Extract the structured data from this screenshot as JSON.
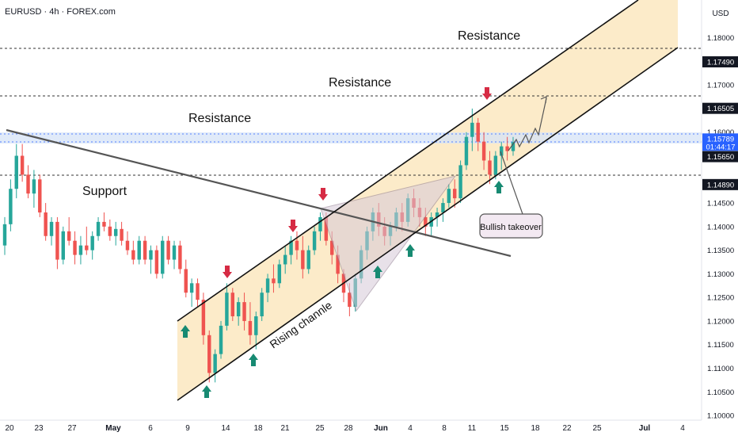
{
  "header": {
    "symbol_line": "EURUSD · 4h · FOREX.com",
    "currency": "USD"
  },
  "chart_data": {
    "type": "candlestick",
    "symbol": "EURUSD",
    "timeframe": "4h",
    "exchange": "FOREX.com",
    "currency": "USD",
    "ylim": [
      1.099,
      1.188
    ],
    "y_ticks": [
      {
        "value": 1.18,
        "label": "1.18000"
      },
      {
        "value": 1.17,
        "label": "1.17000"
      },
      {
        "value": 1.16,
        "label": "1.16000"
      },
      {
        "value": 1.155,
        "label": "1.15500"
      },
      {
        "value": 1.145,
        "label": "1.14500"
      },
      {
        "value": 1.14,
        "label": "1.14000"
      },
      {
        "value": 1.135,
        "label": "1.13500"
      },
      {
        "value": 1.13,
        "label": "1.13000"
      },
      {
        "value": 1.125,
        "label": "1.12500"
      },
      {
        "value": 1.12,
        "label": "1.12000"
      },
      {
        "value": 1.115,
        "label": "1.11500"
      },
      {
        "value": 1.11,
        "label": "1.11000"
      },
      {
        "value": 1.105,
        "label": "1.10500"
      },
      {
        "value": 1.1,
        "label": "1.10000"
      }
    ],
    "x_ticks": [
      {
        "label": "20",
        "bold": false
      },
      {
        "label": "23",
        "bold": false
      },
      {
        "label": "27",
        "bold": false
      },
      {
        "label": "May",
        "bold": true
      },
      {
        "label": "6",
        "bold": false
      },
      {
        "label": "9",
        "bold": false
      },
      {
        "label": "14",
        "bold": false
      },
      {
        "label": "18",
        "bold": false
      },
      {
        "label": "21",
        "bold": false
      },
      {
        "label": "25",
        "bold": false
      },
      {
        "label": "28",
        "bold": false
      },
      {
        "label": "Jun",
        "bold": true
      },
      {
        "label": "4",
        "bold": false
      },
      {
        "label": "8",
        "bold": false
      },
      {
        "label": "11",
        "bold": false
      },
      {
        "label": "15",
        "bold": false
      },
      {
        "label": "18",
        "bold": false
      },
      {
        "label": "22",
        "bold": false
      },
      {
        "label": "25",
        "bold": false
      },
      {
        "label": "Jul",
        "bold": true
      },
      {
        "label": "4",
        "bold": false
      }
    ],
    "price_markers": [
      {
        "value": 1.1749,
        "label": "1.17490",
        "style": "dark"
      },
      {
        "value": 1.16505,
        "label": "1.16505",
        "style": "dark"
      },
      {
        "value": 1.15789,
        "label": "1.15789",
        "style": "blue"
      },
      {
        "value": 1.1565,
        "label": "1.15650",
        "style": "dark"
      },
      {
        "value": 1.1489,
        "label": "1.14890",
        "style": "dark"
      }
    ],
    "countdown": "01:44:17",
    "current_price": 1.15789,
    "horizontal_levels": [
      1.1749,
      1.16505,
      1.1489
    ],
    "support_band": [
      1.1565,
      1.15789
    ],
    "annotations": {
      "resistance_1": "Resistance",
      "resistance_2": "Resistance",
      "resistance_3": "Resistance",
      "support": "Support",
      "channel": "Rising channle",
      "callout": "Bullish takeover"
    },
    "candles_approx": [
      [
        1.136,
        1.142,
        1.134,
        1.1405
      ],
      [
        1.1405,
        1.15,
        1.139,
        1.148
      ],
      [
        1.148,
        1.1575,
        1.146,
        1.155
      ],
      [
        1.155,
        1.1575,
        1.1495,
        1.151
      ],
      [
        1.151,
        1.153,
        1.146,
        1.147
      ],
      [
        1.147,
        1.152,
        1.144,
        1.15
      ],
      [
        1.15,
        1.151,
        1.142,
        1.143
      ],
      [
        1.143,
        1.145,
        1.137,
        1.138
      ],
      [
        1.138,
        1.142,
        1.136,
        1.141
      ],
      [
        1.141,
        1.142,
        1.131,
        1.133
      ],
      [
        1.133,
        1.14,
        1.132,
        1.139
      ],
      [
        1.139,
        1.142,
        1.136,
        1.137
      ],
      [
        1.137,
        1.139,
        1.132,
        1.134
      ],
      [
        1.134,
        1.138,
        1.132,
        1.136
      ],
      [
        1.136,
        1.14,
        1.134,
        1.135
      ],
      [
        1.135,
        1.139,
        1.133,
        1.138
      ],
      [
        1.138,
        1.142,
        1.137,
        1.141
      ],
      [
        1.141,
        1.143,
        1.139,
        1.14
      ],
      [
        1.14,
        1.1415,
        1.137,
        1.138
      ],
      [
        1.138,
        1.141,
        1.136,
        1.1395
      ],
      [
        1.1395,
        1.141,
        1.136,
        1.137
      ],
      [
        1.137,
        1.139,
        1.134,
        1.135
      ],
      [
        1.135,
        1.137,
        1.132,
        1.133
      ],
      [
        1.133,
        1.138,
        1.132,
        1.137
      ],
      [
        1.137,
        1.138,
        1.132,
        1.133
      ],
      [
        1.133,
        1.136,
        1.13,
        1.135
      ],
      [
        1.135,
        1.136,
        1.129,
        1.13
      ],
      [
        1.13,
        1.138,
        1.129,
        1.137
      ],
      [
        1.137,
        1.138,
        1.132,
        1.133
      ],
      [
        1.133,
        1.137,
        1.131,
        1.136
      ],
      [
        1.136,
        1.137,
        1.13,
        1.131
      ],
      [
        1.131,
        1.133,
        1.125,
        1.126
      ],
      [
        1.126,
        1.129,
        1.123,
        1.128
      ],
      [
        1.128,
        1.129,
        1.123,
        1.1245
      ],
      [
        1.1245,
        1.126,
        1.115,
        1.117
      ],
      [
        1.117,
        1.118,
        1.107,
        1.109
      ],
      [
        1.109,
        1.114,
        1.107,
        1.113
      ],
      [
        1.113,
        1.12,
        1.112,
        1.119
      ],
      [
        1.119,
        1.128,
        1.118,
        1.126
      ],
      [
        1.126,
        1.127,
        1.12,
        1.121
      ],
      [
        1.121,
        1.125,
        1.119,
        1.124
      ],
      [
        1.124,
        1.126,
        1.118,
        1.12
      ],
      [
        1.12,
        1.124,
        1.115,
        1.117
      ],
      [
        1.117,
        1.122,
        1.114,
        1.121
      ],
      [
        1.121,
        1.127,
        1.12,
        1.126
      ],
      [
        1.126,
        1.13,
        1.124,
        1.129
      ],
      [
        1.129,
        1.132,
        1.126,
        1.128
      ],
      [
        1.128,
        1.133,
        1.127,
        1.132
      ],
      [
        1.132,
        1.136,
        1.13,
        1.134
      ],
      [
        1.134,
        1.138,
        1.132,
        1.137
      ],
      [
        1.137,
        1.139,
        1.133,
        1.135
      ],
      [
        1.135,
        1.138,
        1.129,
        1.131
      ],
      [
        1.131,
        1.136,
        1.13,
        1.135
      ],
      [
        1.135,
        1.14,
        1.134,
        1.139
      ],
      [
        1.139,
        1.143,
        1.137,
        1.142
      ],
      [
        1.142,
        1.143,
        1.136,
        1.137
      ],
      [
        1.137,
        1.139,
        1.132,
        1.134
      ],
      [
        1.134,
        1.136,
        1.128,
        1.13
      ],
      [
        1.13,
        1.131,
        1.124,
        1.126
      ],
      [
        1.126,
        1.128,
        1.121,
        1.123
      ],
      [
        1.123,
        1.13,
        1.122,
        1.129
      ],
      [
        1.129,
        1.136,
        1.128,
        1.135
      ],
      [
        1.135,
        1.14,
        1.133,
        1.139
      ],
      [
        1.139,
        1.144,
        1.137,
        1.143
      ],
      [
        1.143,
        1.145,
        1.138,
        1.14
      ],
      [
        1.14,
        1.142,
        1.136,
        1.138
      ],
      [
        1.138,
        1.141,
        1.136,
        1.14
      ],
      [
        1.14,
        1.144,
        1.139,
        1.143
      ],
      [
        1.143,
        1.145,
        1.139,
        1.141
      ],
      [
        1.141,
        1.147,
        1.14,
        1.146
      ],
      [
        1.146,
        1.148,
        1.142,
        1.144
      ],
      [
        1.144,
        1.146,
        1.14,
        1.142
      ],
      [
        1.142,
        1.144,
        1.138,
        1.14
      ],
      [
        1.14,
        1.143,
        1.138,
        1.142
      ],
      [
        1.142,
        1.144,
        1.14,
        1.143
      ],
      [
        1.143,
        1.146,
        1.141,
        1.145
      ],
      [
        1.145,
        1.149,
        1.144,
        1.148
      ],
      [
        1.148,
        1.15,
        1.144,
        1.146
      ],
      [
        1.146,
        1.154,
        1.145,
        1.153
      ],
      [
        1.153,
        1.16,
        1.152,
        1.159
      ],
      [
        1.159,
        1.165,
        1.156,
        1.162
      ],
      [
        1.162,
        1.163,
        1.156,
        1.158
      ],
      [
        1.158,
        1.16,
        1.152,
        1.154
      ],
      [
        1.154,
        1.156,
        1.149,
        1.151
      ],
      [
        1.151,
        1.156,
        1.15,
        1.155
      ],
      [
        1.155,
        1.158,
        1.152,
        1.157
      ],
      [
        1.157,
        1.159,
        1.154,
        1.156
      ],
      [
        1.156,
        1.159,
        1.155,
        1.1579
      ]
    ]
  }
}
